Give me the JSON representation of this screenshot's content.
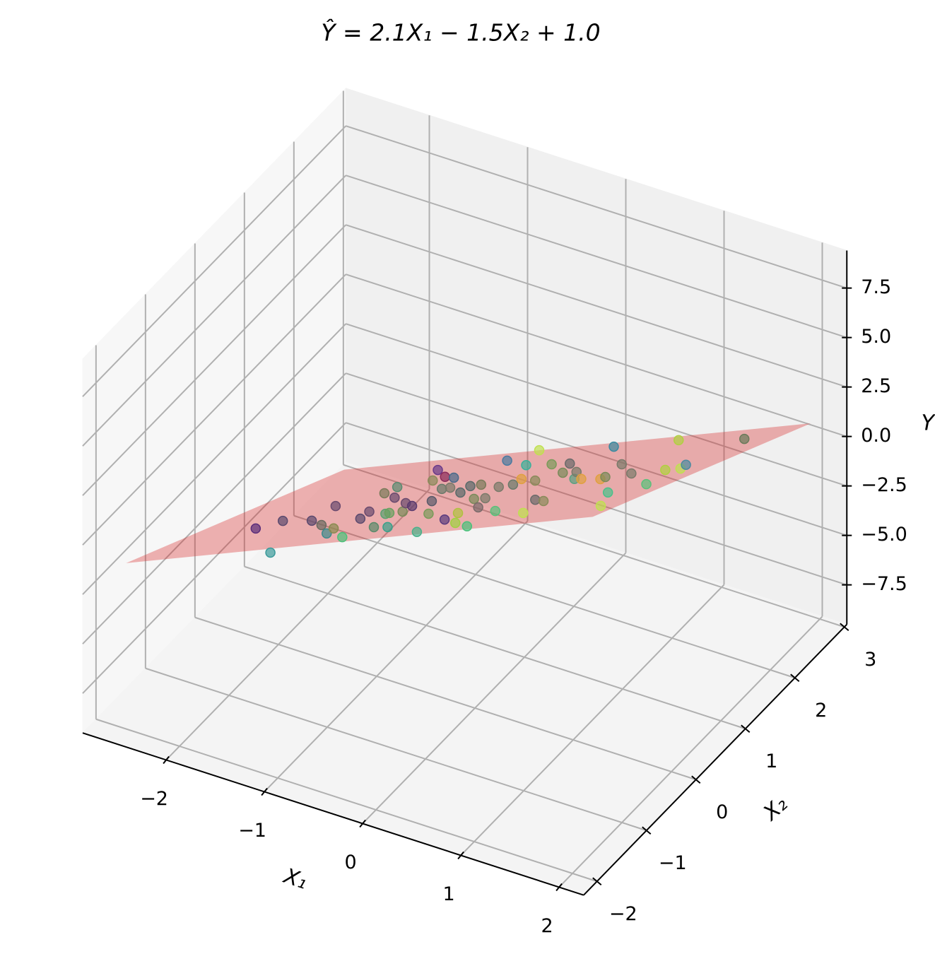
{
  "chart_data": {
    "type": "scatter3d",
    "title": "Ŷ = 2.1X₁ − 1.5X₂ + 1.0",
    "xlabel": "X₁",
    "ylabel": "X₂",
    "zlabel": "Y",
    "xlim": [
      -2.85,
      2.25
    ],
    "ylim": [
      -2.27,
      3.05
    ],
    "zlim": [
      -9.5,
      9.4
    ],
    "xticks": [
      {
        "value": -2,
        "label": "−2"
      },
      {
        "value": -1,
        "label": "−1"
      },
      0,
      1,
      2
    ],
    "yticks": [
      {
        "value": -2,
        "label": "−2"
      },
      {
        "value": -1,
        "label": "−1"
      },
      0,
      1,
      2,
      3
    ],
    "zticks": [
      {
        "value": -7.5,
        "label": "−7.5"
      },
      {
        "value": -5,
        "label": "−5.0"
      },
      {
        "value": -2.5,
        "label": "−2.5"
      },
      {
        "value": 0,
        "label": "0.0"
      },
      {
        "value": 2.5,
        "label": "2.5"
      },
      {
        "value": 5,
        "label": "5.0"
      },
      {
        "value": 7.5,
        "label": "7.5"
      }
    ],
    "grid": true,
    "plane": {
      "x": [
        -2.68,
        2.07
      ],
      "y": [
        -1.73,
        2.68
      ],
      "coef": [
        2.1,
        -1.5
      ],
      "intercept": 1.0,
      "color": "#d62728"
    },
    "points": {
      "x": [
        -2.03,
        -1.09,
        -1.91,
        -1.53,
        -1.27,
        -0.94,
        -1.0,
        -1.67,
        -0.62,
        -0.95,
        -1.05,
        -0.51,
        -1.42,
        -0.77,
        -0.33,
        -0.74,
        -1.15,
        -1.44,
        -0.61,
        -0.83,
        -0.66,
        0.21,
        -0.2,
        -0.55,
        -1.17,
        -1.43,
        -0.79,
        0.19,
        -1.12,
        -0.72,
        -0.98,
        0.44,
        0.17,
        -0.43,
        0.7,
        -0.5,
        -0.06,
        0.26,
        -0.4,
        0.07,
        0.6,
        -0.1,
        -0.8,
        0.02,
        -0.04,
        1.03,
        -0.41,
        0.19,
        0.78,
        -0.7,
        0.93,
        -0.1,
        0.31,
        0.12,
        0.66,
        0.47,
        0.75,
        1.01,
        1.84,
        1.01,
        1.52,
        0.18,
        0.83,
        1.24,
        1.77,
        1.58,
        0.84,
        1.74,
        1.7,
        1.67
      ],
      "y": [
        -0.4,
        -1.97,
        -0.09,
        -0.26,
        -0.58,
        -1.13,
        -0.87,
        0.5,
        -1.45,
        -0.43,
        -0.05,
        -1.03,
        0.99,
        -0.28,
        -1.11,
        -0.26,
        0.66,
        1.29,
        -0.25,
        0.25,
        0.04,
        -1.59,
        -0.54,
        0.22,
        1.47,
        2.09,
        0.9,
        -0.99,
        1.62,
        0.93,
        1.52,
        -1.27,
        -0.68,
        0.56,
        -1.55,
        0.9,
        0.1,
        -0.45,
        0.92,
        0.07,
        -0.78,
        0.68,
        2.24,
        0.73,
        1.02,
        -1.07,
        1.85,
        0.84,
        -0.33,
        2.69,
        -0.46,
        1.75,
        1.16,
        1.68,
        0.7,
        1.12,
        0.66,
        0.53,
        -1.11,
        0.63,
        -0.33,
        2.45,
        1.32,
        0.7,
        -0.05,
        0.71,
        2.45,
        0.7,
        0.89,
        2.13
      ],
      "z": [
        -2.66,
        1.67,
        -2.88,
        -1.82,
        -0.8,
        0.72,
        0.21,
        -3.26,
        1.87,
        -0.35,
        -1.13,
        1.47,
        -3.47,
        -0.2,
        1.97,
        -0.16,
        -2.41,
        -3.96,
        0.09,
        -1.12,
        -0.45,
        3.83,
        1.39,
        -0.49,
        -3.66,
        -5.14,
        -2.01,
        2.88,
        -3.78,
        -1.91,
        -3.34,
        3.83,
        2.38,
        -0.74,
        4.8,
        -1.4,
        0.72,
        2.22,
        -1.22,
        1.04,
        3.43,
        -0.23,
        -4.04,
        -0.05,
        -0.61,
        4.77,
        -2.64,
        0.14,
        3.13,
        -4.51,
        3.64,
        -1.84,
        -0.09,
        -1.27,
        1.34,
        0.31,
        1.59,
        2.33,
        6.53,
        2.18,
        4.69,
        -2.3,
        0.76,
        2.55,
        4.79,
        3.25,
        -0.91,
        3.6,
        3.24,
        1.31
      ],
      "colors": [
        "#5b2d7a",
        "#3a9a9a",
        "#5c4a6e",
        "#5c4a6e",
        "#6a6a60",
        "#3d8a8c",
        "#8a8a50",
        "#6a4a6e",
        "#4cc07a",
        "#5c4a6e",
        "#6a4a6e",
        "#5a8a6a",
        "#7a7a5a",
        "#5aa070",
        "#3aa08a",
        "#6aa060",
        "#6a4a6e",
        "#5a8a70",
        "#7a8a5a",
        "#6a4a6e",
        "#5a3a6e",
        "#4ab08a",
        "#7a9a5a",
        "#5a5a6a",
        "#8a8a5a",
        "#6a3a8a",
        "#6a7a6a",
        "#5a3a7e",
        "#8a2a5a",
        "#7a7a6a",
        "#4a6a8a",
        "#a0d040",
        "#b0c040",
        "#5a6a6a",
        "#4ac07a",
        "#5a6a6a",
        "#7a8a5a",
        "#7a6a6a",
        "#7a7a5a",
        "#7a7a6a",
        "#5ac07a",
        "#7a7a6a",
        "#4a7aa0",
        "#6a7a6a",
        "#e0a040",
        "#c0e050",
        "#3ab09a",
        "#8a8a5a",
        "#6a6a6a",
        "#c0e050",
        "#8a8a5a",
        "#7a9a5a",
        "#7a8a5a",
        "#6a6a6a",
        "#5aa080",
        "#7a7a6a",
        "#e0a040",
        "#e0a040",
        "#c0e050",
        "#7a8a5a",
        "#4ac08a",
        "#3a8aa0",
        "#7a7a6a",
        "#7a7a6a",
        "#5ac07a",
        "#b0d040",
        "#b0d040",
        "#c0e050",
        "#4a8aa0",
        "#6a7a5a"
      ]
    }
  }
}
